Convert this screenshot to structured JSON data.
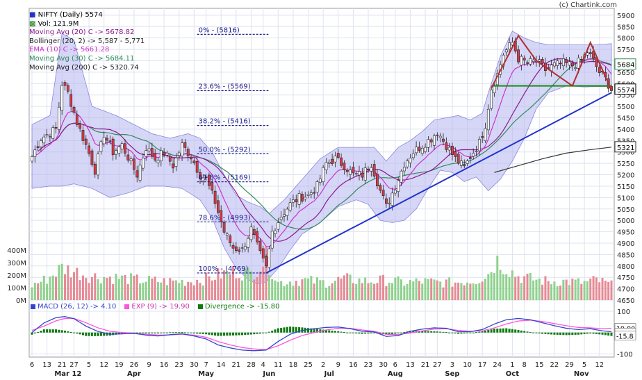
{
  "credit": "(c) Chartink.com",
  "legend": {
    "title": "NIFTY (Daily) 5574",
    "vol": "Vol: 121.9M",
    "ma20": "Moving Avg (20) C -> 5678.82",
    "boll": "Bollinger (20, 2) -> 5,587 - 5,771",
    "ema10": "EMA (10) C -> 5661.28",
    "ma30": "Moving Avg (30) C -> 5684.11",
    "ma200": "Moving Avg (200) C -> 5320.74"
  },
  "macd_legend": {
    "macd": "MACD (26, 12) -> 4.10",
    "exp": "EXP (9) -> 19.90",
    "div": "Divergence -> -15.80"
  },
  "colors": {
    "ma20": "#8b1a8b",
    "boll_fill": "#b4b4f0",
    "ema10": "#cc33cc",
    "ma30": "#2e8b57",
    "ma200": "#333333",
    "up": "#ffffff",
    "down": "#d63a4a",
    "vol_up": "#8fd18f",
    "vol_down": "#e58a95",
    "trend": "#2233cc",
    "fib": "#1a1a8c",
    "macd": "#3344cc",
    "exp": "#ff55dd",
    "div": "#0f7a0f",
    "pattern": "#b03030",
    "support": "#1a8a1a"
  },
  "chart_data": {
    "type": "candlestick",
    "title": "NIFTY (Daily) 5574",
    "y_ticks": [
      4650,
      4700,
      4750,
      4800,
      4850,
      4900,
      4950,
      5000,
      5050,
      5100,
      5150,
      5200,
      5250,
      5300,
      5350,
      5400,
      5450,
      5500,
      5550,
      5600,
      5650,
      5700,
      5750,
      5800,
      5850,
      5900
    ],
    "ylim": [
      4650,
      5930
    ],
    "vol_ticks": [
      "0M",
      "100M",
      "200M",
      "300M",
      "400M"
    ],
    "vol_lim": [
      0,
      400
    ],
    "macd_ticks": [
      "100",
      "0",
      "-100"
    ],
    "macd_lim": [
      -115,
      100
    ],
    "price_badges": [
      {
        "value": "5684",
        "color": "#2e8b57"
      },
      {
        "value": "5574",
        "color": "#000000"
      },
      {
        "value": "5321",
        "color": "#333333"
      }
    ],
    "macd_badges": [
      "19.90",
      "4.10",
      "-15.8"
    ],
    "x_ticks": [
      {
        "label": "6",
        "i": 0
      },
      {
        "label": "13",
        "i": 5
      },
      {
        "label": "21",
        "i": 10
      },
      {
        "label": "27",
        "i": 14
      },
      {
        "label": "5",
        "i": 19
      },
      {
        "label": "12",
        "i": 24
      },
      {
        "label": "19",
        "i": 29
      },
      {
        "label": "26",
        "i": 34
      },
      {
        "label": "9",
        "i": 39
      },
      {
        "label": "16",
        "i": 44
      },
      {
        "label": "23",
        "i": 49
      },
      {
        "label": "30",
        "i": 54
      },
      {
        "label": "7",
        "i": 58
      },
      {
        "label": "14",
        "i": 63
      },
      {
        "label": "21",
        "i": 68
      },
      {
        "label": "28",
        "i": 73
      },
      {
        "label": "4",
        "i": 77
      },
      {
        "label": "11",
        "i": 82
      },
      {
        "label": "18",
        "i": 87
      },
      {
        "label": "25",
        "i": 92
      },
      {
        "label": "2",
        "i": 97
      },
      {
        "label": "9",
        "i": 102
      },
      {
        "label": "16",
        "i": 107
      },
      {
        "label": "23",
        "i": 112
      },
      {
        "label": "30",
        "i": 117
      },
      {
        "label": "6",
        "i": 121
      },
      {
        "label": "13",
        "i": 126
      },
      {
        "label": "21",
        "i": 131
      },
      {
        "label": "27",
        "i": 135
      },
      {
        "label": "3",
        "i": 140
      },
      {
        "label": "10",
        "i": 145
      },
      {
        "label": "17",
        "i": 150
      },
      {
        "label": "24",
        "i": 155
      },
      {
        "label": "1",
        "i": 160
      },
      {
        "label": "8",
        "i": 164
      },
      {
        "label": "15",
        "i": 169
      },
      {
        "label": "22",
        "i": 174
      },
      {
        "label": "29",
        "i": 179
      },
      {
        "label": "5",
        "i": 184
      },
      {
        "label": "12",
        "i": 189
      }
    ],
    "month_labels": [
      {
        "label": "Mar 12",
        "i": 12
      },
      {
        "label": "Apr",
        "i": 34
      },
      {
        "label": "May",
        "i": 58
      },
      {
        "label": "Jun",
        "i": 79
      },
      {
        "label": "Jul",
        "i": 99
      },
      {
        "label": "Aug",
        "i": 121
      },
      {
        "label": "Sep",
        "i": 140
      },
      {
        "label": "Oct",
        "i": 160
      },
      {
        "label": "Nov",
        "i": 183
      }
    ],
    "n_bars": 194,
    "close_anchors": [
      [
        0,
        5280
      ],
      [
        3,
        5360
      ],
      [
        8,
        5400
      ],
      [
        10,
        5600
      ],
      [
        12,
        5560
      ],
      [
        15,
        5430
      ],
      [
        18,
        5330
      ],
      [
        21,
        5220
      ],
      [
        24,
        5380
      ],
      [
        27,
        5300
      ],
      [
        30,
        5330
      ],
      [
        33,
        5250
      ],
      [
        35,
        5200
      ],
      [
        38,
        5320
      ],
      [
        41,
        5270
      ],
      [
        44,
        5300
      ],
      [
        47,
        5240
      ],
      [
        50,
        5330
      ],
      [
        53,
        5280
      ],
      [
        56,
        5200
      ],
      [
        58,
        5180
      ],
      [
        61,
        5080
      ],
      [
        64,
        4950
      ],
      [
        67,
        4880
      ],
      [
        70,
        4870
      ],
      [
        73,
        4960
      ],
      [
        76,
        4850
      ],
      [
        78,
        4790
      ],
      [
        80,
        4950
      ],
      [
        83,
        5020
      ],
      [
        86,
        5070
      ],
      [
        89,
        5100
      ],
      [
        92,
        5110
      ],
      [
        95,
        5150
      ],
      [
        98,
        5250
      ],
      [
        101,
        5270
      ],
      [
        104,
        5240
      ],
      [
        107,
        5200
      ],
      [
        110,
        5200
      ],
      [
        113,
        5250
      ],
      [
        116,
        5130
      ],
      [
        118,
        5060
      ],
      [
        121,
        5150
      ],
      [
        124,
        5250
      ],
      [
        127,
        5300
      ],
      [
        130,
        5330
      ],
      [
        133,
        5360
      ],
      [
        135,
        5390
      ],
      [
        138,
        5330
      ],
      [
        141,
        5270
      ],
      [
        144,
        5230
      ],
      [
        146,
        5280
      ],
      [
        149,
        5340
      ],
      [
        151,
        5420
      ],
      [
        153,
        5580
      ],
      [
        155,
        5640
      ],
      [
        157,
        5730
      ],
      [
        160,
        5780
      ],
      [
        162,
        5710
      ],
      [
        165,
        5690
      ],
      [
        168,
        5700
      ],
      [
        171,
        5660
      ],
      [
        174,
        5680
      ],
      [
        177,
        5690
      ],
      [
        180,
        5680
      ],
      [
        183,
        5700
      ],
      [
        185,
        5740
      ],
      [
        187,
        5700
      ],
      [
        189,
        5650
      ],
      [
        191,
        5620
      ],
      [
        193,
        5574
      ]
    ],
    "bb_upper_anchors": [
      [
        0,
        5420
      ],
      [
        6,
        5460
      ],
      [
        10,
        5820
      ],
      [
        14,
        5790
      ],
      [
        20,
        5500
      ],
      [
        28,
        5460
      ],
      [
        34,
        5420
      ],
      [
        40,
        5380
      ],
      [
        46,
        5360
      ],
      [
        52,
        5380
      ],
      [
        56,
        5360
      ],
      [
        60,
        5300
      ],
      [
        64,
        5200
      ],
      [
        68,
        5110
      ],
      [
        72,
        5080
      ],
      [
        76,
        5060
      ],
      [
        79,
        5030
      ],
      [
        84,
        5090
      ],
      [
        90,
        5180
      ],
      [
        96,
        5270
      ],
      [
        102,
        5320
      ],
      [
        108,
        5320
      ],
      [
        114,
        5320
      ],
      [
        118,
        5260
      ],
      [
        122,
        5320
      ],
      [
        126,
        5350
      ],
      [
        130,
        5390
      ],
      [
        134,
        5440
      ],
      [
        138,
        5450
      ],
      [
        142,
        5460
      ],
      [
        146,
        5440
      ],
      [
        150,
        5470
      ],
      [
        152,
        5560
      ],
      [
        156,
        5720
      ],
      [
        160,
        5830
      ],
      [
        164,
        5800
      ],
      [
        168,
        5780
      ],
      [
        172,
        5770
      ],
      [
        178,
        5770
      ],
      [
        184,
        5770
      ],
      [
        188,
        5770
      ],
      [
        193,
        5775
      ]
    ],
    "bb_lower_anchors": [
      [
        0,
        5140
      ],
      [
        6,
        5150
      ],
      [
        10,
        5150
      ],
      [
        14,
        5160
      ],
      [
        20,
        5140
      ],
      [
        26,
        5100
      ],
      [
        32,
        5120
      ],
      [
        38,
        5150
      ],
      [
        44,
        5150
      ],
      [
        50,
        5140
      ],
      [
        56,
        5090
      ],
      [
        60,
        5010
      ],
      [
        64,
        4880
      ],
      [
        68,
        4790
      ],
      [
        72,
        4740
      ],
      [
        75,
        4720
      ],
      [
        78,
        4730
      ],
      [
        82,
        4790
      ],
      [
        86,
        4870
      ],
      [
        90,
        4940
      ],
      [
        96,
        4990
      ],
      [
        102,
        5060
      ],
      [
        108,
        5090
      ],
      [
        112,
        5070
      ],
      [
        116,
        5000
      ],
      [
        120,
        4990
      ],
      [
        124,
        5000
      ],
      [
        128,
        5050
      ],
      [
        132,
        5140
      ],
      [
        136,
        5220
      ],
      [
        140,
        5210
      ],
      [
        144,
        5170
      ],
      [
        148,
        5190
      ],
      [
        152,
        5130
      ],
      [
        156,
        5180
      ],
      [
        160,
        5260
      ],
      [
        164,
        5360
      ],
      [
        168,
        5490
      ],
      [
        172,
        5560
      ],
      [
        178,
        5590
      ],
      [
        184,
        5585
      ],
      [
        188,
        5587
      ],
      [
        193,
        5587
      ]
    ],
    "ma200_anchors": [
      [
        154,
        5210
      ],
      [
        162,
        5240
      ],
      [
        170,
        5270
      ],
      [
        178,
        5295
      ],
      [
        186,
        5310
      ],
      [
        193,
        5321
      ]
    ],
    "volume_anchors": [
      [
        0,
        120
      ],
      [
        5,
        170
      ],
      [
        10,
        260
      ],
      [
        14,
        230
      ],
      [
        20,
        190
      ],
      [
        28,
        180
      ],
      [
        36,
        160
      ],
      [
        44,
        150
      ],
      [
        52,
        150
      ],
      [
        58,
        170
      ],
      [
        62,
        200
      ],
      [
        68,
        230
      ],
      [
        73,
        210
      ],
      [
        78,
        330
      ],
      [
        82,
        140
      ],
      [
        90,
        160
      ],
      [
        98,
        140
      ],
      [
        104,
        170
      ],
      [
        112,
        150
      ],
      [
        118,
        160
      ],
      [
        124,
        140
      ],
      [
        130,
        150
      ],
      [
        136,
        140
      ],
      [
        140,
        140
      ],
      [
        148,
        160
      ],
      [
        152,
        210
      ],
      [
        155,
        320
      ],
      [
        158,
        260
      ],
      [
        162,
        190
      ],
      [
        166,
        170
      ],
      [
        172,
        150
      ],
      [
        178,
        150
      ],
      [
        184,
        140
      ],
      [
        188,
        160
      ],
      [
        193,
        122
      ]
    ],
    "macd_anchors": [
      [
        0,
        0
      ],
      [
        4,
        45
      ],
      [
        8,
        70
      ],
      [
        11,
        75
      ],
      [
        14,
        65
      ],
      [
        18,
        30
      ],
      [
        22,
        5
      ],
      [
        26,
        -8
      ],
      [
        30,
        -6
      ],
      [
        34,
        -4
      ],
      [
        38,
        -12
      ],
      [
        42,
        -16
      ],
      [
        46,
        -10
      ],
      [
        50,
        -6
      ],
      [
        54,
        -16
      ],
      [
        58,
        -30
      ],
      [
        62,
        -58
      ],
      [
        66,
        -72
      ],
      [
        70,
        -82
      ],
      [
        74,
        -85
      ],
      [
        78,
        -82
      ],
      [
        82,
        -42
      ],
      [
        86,
        -8
      ],
      [
        90,
        10
      ],
      [
        94,
        18
      ],
      [
        98,
        24
      ],
      [
        102,
        26
      ],
      [
        106,
        18
      ],
      [
        110,
        6
      ],
      [
        114,
        3
      ],
      [
        118,
        -18
      ],
      [
        122,
        -14
      ],
      [
        126,
        6
      ],
      [
        130,
        16
      ],
      [
        134,
        22
      ],
      [
        138,
        20
      ],
      [
        142,
        4
      ],
      [
        146,
        4
      ],
      [
        150,
        14
      ],
      [
        154,
        40
      ],
      [
        158,
        60
      ],
      [
        162,
        66
      ],
      [
        166,
        60
      ],
      [
        170,
        46
      ],
      [
        174,
        32
      ],
      [
        178,
        20
      ],
      [
        182,
        14
      ],
      [
        186,
        18
      ],
      [
        190,
        8
      ],
      [
        193,
        4
      ]
    ],
    "exp_anchors": [
      [
        0,
        10
      ],
      [
        4,
        30
      ],
      [
        8,
        55
      ],
      [
        11,
        66
      ],
      [
        14,
        66
      ],
      [
        18,
        46
      ],
      [
        22,
        22
      ],
      [
        26,
        6
      ],
      [
        30,
        0
      ],
      [
        34,
        -3
      ],
      [
        38,
        -8
      ],
      [
        42,
        -12
      ],
      [
        46,
        -11
      ],
      [
        50,
        -8
      ],
      [
        54,
        -12
      ],
      [
        58,
        -22
      ],
      [
        62,
        -42
      ],
      [
        66,
        -58
      ],
      [
        70,
        -70
      ],
      [
        74,
        -77
      ],
      [
        78,
        -80
      ],
      [
        82,
        -62
      ],
      [
        86,
        -36
      ],
      [
        90,
        -14
      ],
      [
        94,
        0
      ],
      [
        98,
        12
      ],
      [
        102,
        20
      ],
      [
        106,
        20
      ],
      [
        110,
        12
      ],
      [
        114,
        6
      ],
      [
        118,
        -8
      ],
      [
        122,
        -10
      ],
      [
        126,
        -2
      ],
      [
        130,
        8
      ],
      [
        134,
        16
      ],
      [
        138,
        18
      ],
      [
        142,
        10
      ],
      [
        146,
        6
      ],
      [
        150,
        8
      ],
      [
        154,
        22
      ],
      [
        158,
        40
      ],
      [
        162,
        54
      ],
      [
        166,
        58
      ],
      [
        170,
        52
      ],
      [
        174,
        42
      ],
      [
        178,
        32
      ],
      [
        182,
        24
      ],
      [
        186,
        22
      ],
      [
        190,
        18
      ],
      [
        193,
        19.9
      ]
    ],
    "fib_levels": [
      {
        "label": "0% - (5816)",
        "value": 5816
      },
      {
        "label": "23.6% - (5569)",
        "value": 5569
      },
      {
        "label": "38.2% - (5416)",
        "value": 5416
      },
      {
        "label": "50.0% - (5292)",
        "value": 5292
      },
      {
        "label": "61.8% - (5169)",
        "value": 5169
      },
      {
        "label": "78.6% - (4993)",
        "value": 4993
      },
      {
        "label": "100% - (4769)",
        "value": 4769
      }
    ],
    "fib_start_i": 55,
    "fib_end_i": 82,
    "trendline": [
      [
        78,
        4769
      ],
      [
        193,
        5560
      ]
    ],
    "support_line": {
      "value": 5590,
      "i0": 153,
      "i1": 193
    },
    "pattern": [
      [
        153,
        5580
      ],
      [
        162,
        5810
      ],
      [
        168,
        5700
      ],
      [
        180,
        5590
      ],
      [
        186,
        5780
      ],
      [
        191,
        5630
      ],
      [
        193,
        5574
      ]
    ]
  }
}
